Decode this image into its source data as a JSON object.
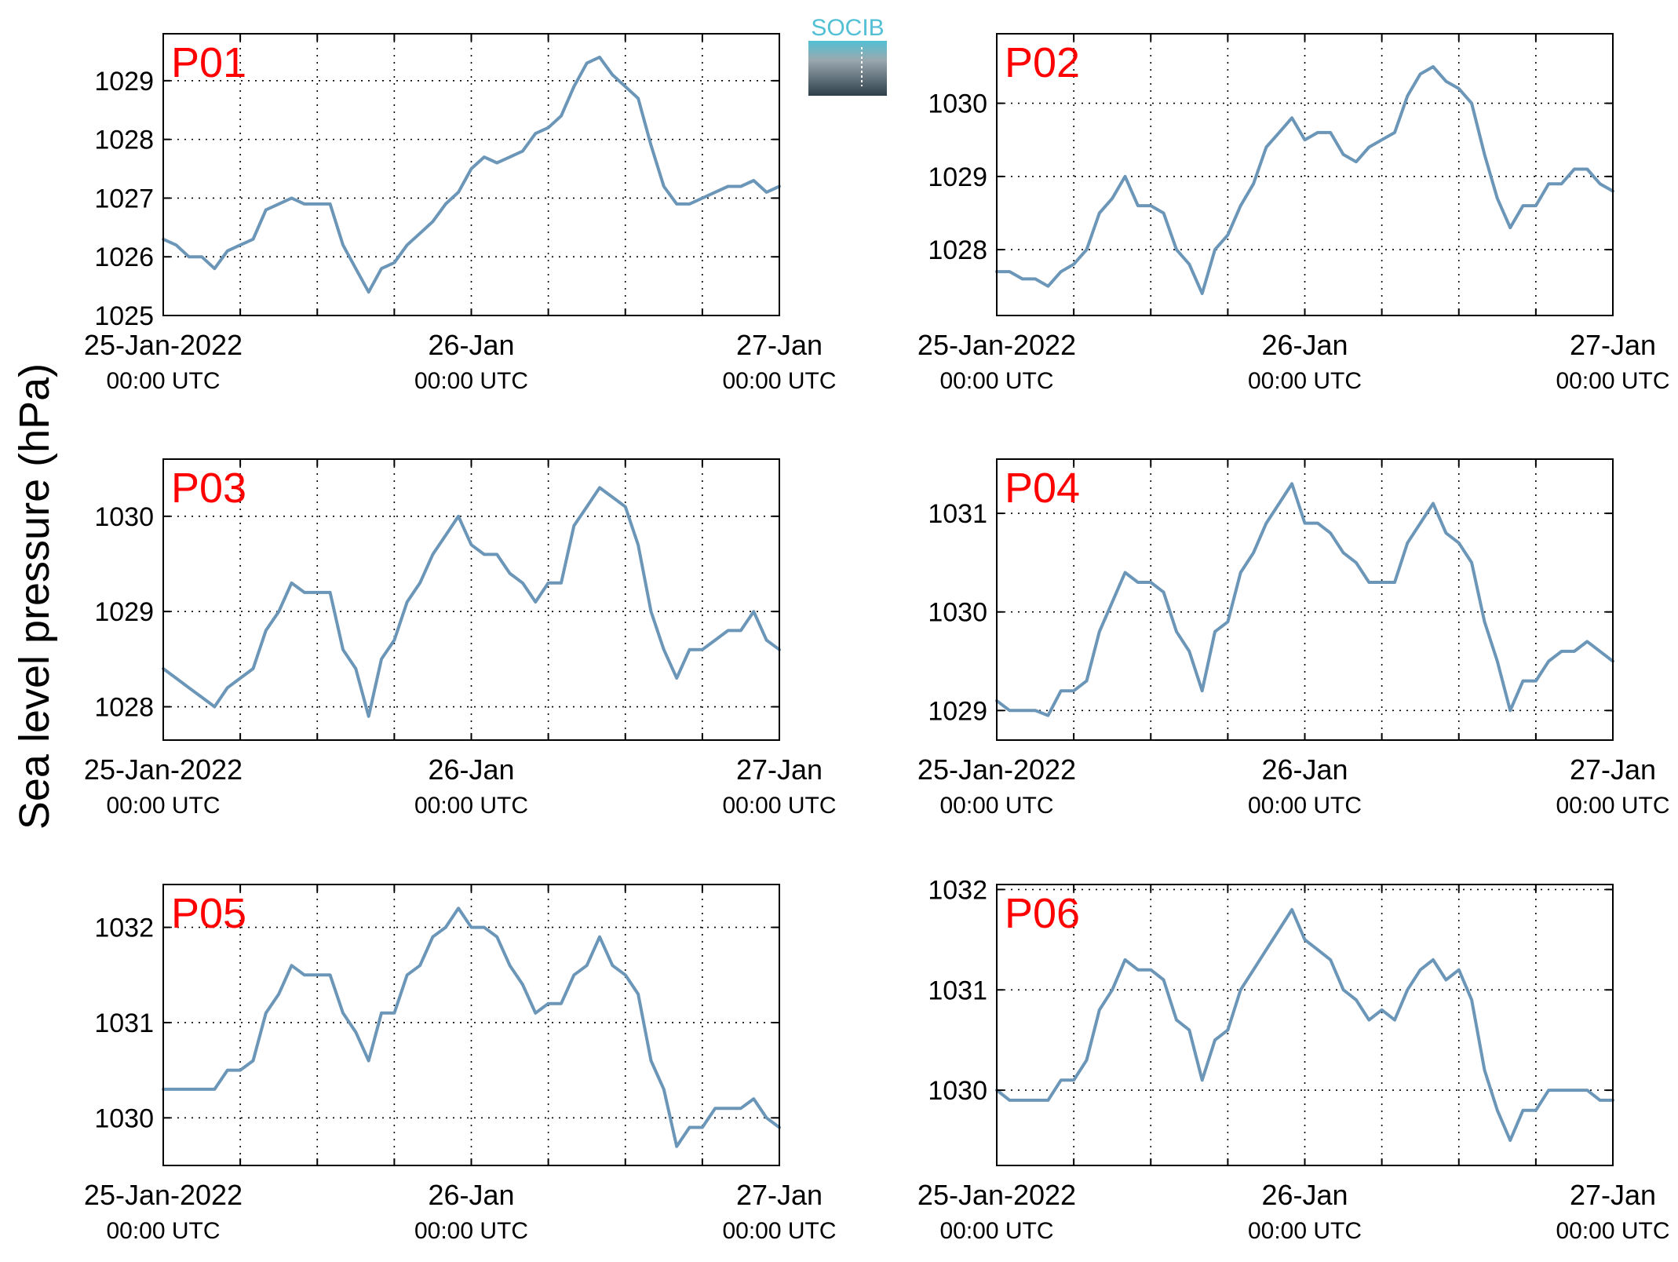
{
  "figure": {
    "ylabel": "Sea level pressure (hPa)",
    "logo_text": "SOCIB"
  },
  "colors": {
    "line": "#6b96b8",
    "panel_label": "#ff0000",
    "axes": "#000000",
    "grid": "#000000",
    "logo_top": "#52c0d4",
    "logo_bottom": "#2e3f4a"
  },
  "chart_data": [
    {
      "type": "line",
      "title": "P01",
      "x_tick_labels": [
        {
          "date": "25-Jan-2022",
          "time": "00:00 UTC"
        },
        {
          "date": "26-Jan",
          "time": "00:00 UTC"
        },
        {
          "date": "27-Jan",
          "time": "00:00 UTC"
        }
      ],
      "xlim_hours": [
        0,
        48
      ],
      "ylim": [
        1025,
        1029.8
      ],
      "yticks": [
        1025,
        1026,
        1027,
        1028,
        1029
      ],
      "grid": true,
      "series": [
        {
          "x_hours": [
            0,
            1,
            2,
            3,
            4,
            5,
            6,
            7,
            8,
            9,
            10,
            11,
            12,
            13,
            14,
            15,
            16,
            17,
            18,
            19,
            20,
            21,
            22,
            23,
            24,
            25,
            26,
            27,
            28,
            29,
            30,
            31,
            32,
            33,
            34,
            35,
            36,
            37,
            38,
            39,
            40,
            41,
            42,
            43,
            44,
            45,
            46,
            47,
            48
          ],
          "values": [
            1026.3,
            1026.2,
            1026.0,
            1026.0,
            1025.8,
            1026.1,
            1026.2,
            1026.3,
            1026.8,
            1026.9,
            1027.0,
            1026.9,
            1026.9,
            1026.9,
            1026.2,
            1025.8,
            1025.4,
            1025.8,
            1025.9,
            1026.2,
            1026.4,
            1026.6,
            1026.9,
            1027.1,
            1027.5,
            1027.7,
            1027.6,
            1027.7,
            1027.8,
            1028.1,
            1028.2,
            1028.4,
            1028.9,
            1029.3,
            1029.4,
            1029.1,
            1028.9,
            1028.7,
            1027.9,
            1027.2,
            1026.9,
            1026.9,
            1027.0,
            1027.1,
            1027.2,
            1027.2,
            1027.3,
            1027.1,
            1027.2
          ]
        }
      ]
    },
    {
      "type": "line",
      "title": "P02",
      "x_tick_labels": [
        {
          "date": "25-Jan-2022",
          "time": "00:00 UTC"
        },
        {
          "date": "26-Jan",
          "time": "00:00 UTC"
        },
        {
          "date": "27-Jan",
          "time": "00:00 UTC"
        }
      ],
      "xlim_hours": [
        0,
        48
      ],
      "ylim": [
        1027.1,
        1030.95
      ],
      "yticks": [
        1028,
        1029,
        1030
      ],
      "grid": true,
      "series": [
        {
          "x_hours": [
            0,
            1,
            2,
            3,
            4,
            5,
            6,
            7,
            8,
            9,
            10,
            11,
            12,
            13,
            14,
            15,
            16,
            17,
            18,
            19,
            20,
            21,
            22,
            23,
            24,
            25,
            26,
            27,
            28,
            29,
            30,
            31,
            32,
            33,
            34,
            35,
            36,
            37,
            38,
            39,
            40,
            41,
            42,
            43,
            44,
            45,
            46,
            47,
            48
          ],
          "values": [
            1027.7,
            1027.7,
            1027.6,
            1027.6,
            1027.5,
            1027.7,
            1027.8,
            1028.0,
            1028.5,
            1028.7,
            1029.0,
            1028.6,
            1028.6,
            1028.5,
            1028.0,
            1027.8,
            1027.4,
            1028.0,
            1028.2,
            1028.6,
            1028.9,
            1029.4,
            1029.6,
            1029.8,
            1029.5,
            1029.6,
            1029.6,
            1029.3,
            1029.2,
            1029.4,
            1029.5,
            1029.6,
            1030.1,
            1030.4,
            1030.5,
            1030.3,
            1030.2,
            1030.0,
            1029.3,
            1028.7,
            1028.3,
            1028.6,
            1028.6,
            1028.9,
            1028.9,
            1029.1,
            1029.1,
            1028.9,
            1028.8
          ]
        }
      ]
    },
    {
      "type": "line",
      "title": "P03",
      "x_tick_labels": [
        {
          "date": "25-Jan-2022",
          "time": "00:00 UTC"
        },
        {
          "date": "26-Jan",
          "time": "00:00 UTC"
        },
        {
          "date": "27-Jan",
          "time": "00:00 UTC"
        }
      ],
      "xlim_hours": [
        0,
        48
      ],
      "ylim": [
        1027.65,
        1030.6
      ],
      "yticks": [
        1028,
        1029,
        1030
      ],
      "grid": true,
      "series": [
        {
          "x_hours": [
            0,
            1,
            2,
            3,
            4,
            5,
            6,
            7,
            8,
            9,
            10,
            11,
            12,
            13,
            14,
            15,
            16,
            17,
            18,
            19,
            20,
            21,
            22,
            23,
            24,
            25,
            26,
            27,
            28,
            29,
            30,
            31,
            32,
            33,
            34,
            35,
            36,
            37,
            38,
            39,
            40,
            41,
            42,
            43,
            44,
            45,
            46,
            47,
            48
          ],
          "values": [
            1028.4,
            1028.3,
            1028.2,
            1028.1,
            1028.0,
            1028.2,
            1028.3,
            1028.4,
            1028.8,
            1029.0,
            1029.3,
            1029.2,
            1029.2,
            1029.2,
            1028.6,
            1028.4,
            1027.9,
            1028.5,
            1028.7,
            1029.1,
            1029.3,
            1029.6,
            1029.8,
            1030.0,
            1029.7,
            1029.6,
            1029.6,
            1029.4,
            1029.3,
            1029.1,
            1029.3,
            1029.3,
            1029.9,
            1030.1,
            1030.3,
            1030.2,
            1030.1,
            1029.7,
            1029.0,
            1028.6,
            1028.3,
            1028.6,
            1028.6,
            1028.7,
            1028.8,
            1028.8,
            1029.0,
            1028.7,
            1028.6
          ]
        }
      ]
    },
    {
      "type": "line",
      "title": "P04",
      "x_tick_labels": [
        {
          "date": "25-Jan-2022",
          "time": "00:00 UTC"
        },
        {
          "date": "26-Jan",
          "time": "00:00 UTC"
        },
        {
          "date": "27-Jan",
          "time": "00:00 UTC"
        }
      ],
      "xlim_hours": [
        0,
        48
      ],
      "ylim": [
        1028.7,
        1031.55
      ],
      "yticks": [
        1029,
        1030,
        1031
      ],
      "grid": true,
      "series": [
        {
          "x_hours": [
            0,
            1,
            2,
            3,
            4,
            5,
            6,
            7,
            8,
            9,
            10,
            11,
            12,
            13,
            14,
            15,
            16,
            17,
            18,
            19,
            20,
            21,
            22,
            23,
            24,
            25,
            26,
            27,
            28,
            29,
            30,
            31,
            32,
            33,
            34,
            35,
            36,
            37,
            38,
            39,
            40,
            41,
            42,
            43,
            44,
            45,
            46,
            47,
            48
          ],
          "values": [
            1029.1,
            1029.0,
            1029.0,
            1029.0,
            1028.95,
            1029.2,
            1029.2,
            1029.3,
            1029.8,
            1030.1,
            1030.4,
            1030.3,
            1030.3,
            1030.2,
            1029.8,
            1029.6,
            1029.2,
            1029.8,
            1029.9,
            1030.4,
            1030.6,
            1030.9,
            1031.1,
            1031.3,
            1030.9,
            1030.9,
            1030.8,
            1030.6,
            1030.5,
            1030.3,
            1030.3,
            1030.3,
            1030.7,
            1030.9,
            1031.1,
            1030.8,
            1030.7,
            1030.5,
            1029.9,
            1029.5,
            1029.0,
            1029.3,
            1029.3,
            1029.5,
            1029.6,
            1029.6,
            1029.7,
            1029.6,
            1029.5
          ]
        }
      ]
    },
    {
      "type": "line",
      "title": "P05",
      "x_tick_labels": [
        {
          "date": "25-Jan-2022",
          "time": "00:00 UTC"
        },
        {
          "date": "26-Jan",
          "time": "00:00 UTC"
        },
        {
          "date": "27-Jan",
          "time": "00:00 UTC"
        }
      ],
      "xlim_hours": [
        0,
        48
      ],
      "ylim": [
        1029.5,
        1032.45
      ],
      "yticks": [
        1030,
        1031,
        1032
      ],
      "grid": true,
      "series": [
        {
          "x_hours": [
            0,
            1,
            2,
            3,
            4,
            5,
            6,
            7,
            8,
            9,
            10,
            11,
            12,
            13,
            14,
            15,
            16,
            17,
            18,
            19,
            20,
            21,
            22,
            23,
            24,
            25,
            26,
            27,
            28,
            29,
            30,
            31,
            32,
            33,
            34,
            35,
            36,
            37,
            38,
            39,
            40,
            41,
            42,
            43,
            44,
            45,
            46,
            47,
            48
          ],
          "values": [
            1030.3,
            1030.3,
            1030.3,
            1030.3,
            1030.3,
            1030.5,
            1030.5,
            1030.6,
            1031.1,
            1031.3,
            1031.6,
            1031.5,
            1031.5,
            1031.5,
            1031.1,
            1030.9,
            1030.6,
            1031.1,
            1031.1,
            1031.5,
            1031.6,
            1031.9,
            1032.0,
            1032.2,
            1032.0,
            1032.0,
            1031.9,
            1031.6,
            1031.4,
            1031.1,
            1031.2,
            1031.2,
            1031.5,
            1031.6,
            1031.9,
            1031.6,
            1031.5,
            1031.3,
            1030.6,
            1030.3,
            1029.7,
            1029.9,
            1029.9,
            1030.1,
            1030.1,
            1030.1,
            1030.2,
            1030.0,
            1029.9
          ]
        }
      ]
    },
    {
      "type": "line",
      "title": "P06",
      "x_tick_labels": [
        {
          "date": "25-Jan-2022",
          "time": "00:00 UTC"
        },
        {
          "date": "26-Jan",
          "time": "00:00 UTC"
        },
        {
          "date": "27-Jan",
          "time": "00:00 UTC"
        }
      ],
      "xlim_hours": [
        0,
        48
      ],
      "ylim": [
        1029.25,
        1032.05
      ],
      "yticks": [
        1030,
        1031,
        1032
      ],
      "grid": true,
      "series": [
        {
          "x_hours": [
            0,
            1,
            2,
            3,
            4,
            5,
            6,
            7,
            8,
            9,
            10,
            11,
            12,
            13,
            14,
            15,
            16,
            17,
            18,
            19,
            20,
            21,
            22,
            23,
            24,
            25,
            26,
            27,
            28,
            29,
            30,
            31,
            32,
            33,
            34,
            35,
            36,
            37,
            38,
            39,
            40,
            41,
            42,
            43,
            44,
            45,
            46,
            47,
            48
          ],
          "values": [
            1030.0,
            1029.9,
            1029.9,
            1029.9,
            1029.9,
            1030.1,
            1030.1,
            1030.3,
            1030.8,
            1031.0,
            1031.3,
            1031.2,
            1031.2,
            1031.1,
            1030.7,
            1030.6,
            1030.1,
            1030.5,
            1030.6,
            1031.0,
            1031.2,
            1031.4,
            1031.6,
            1031.8,
            1031.5,
            1031.4,
            1031.3,
            1031.0,
            1030.9,
            1030.7,
            1030.8,
            1030.7,
            1031.0,
            1031.2,
            1031.3,
            1031.1,
            1031.2,
            1030.9,
            1030.2,
            1029.8,
            1029.5,
            1029.8,
            1029.8,
            1030.0,
            1030.0,
            1030.0,
            1030.0,
            1029.9,
            1029.9
          ]
        }
      ]
    }
  ]
}
